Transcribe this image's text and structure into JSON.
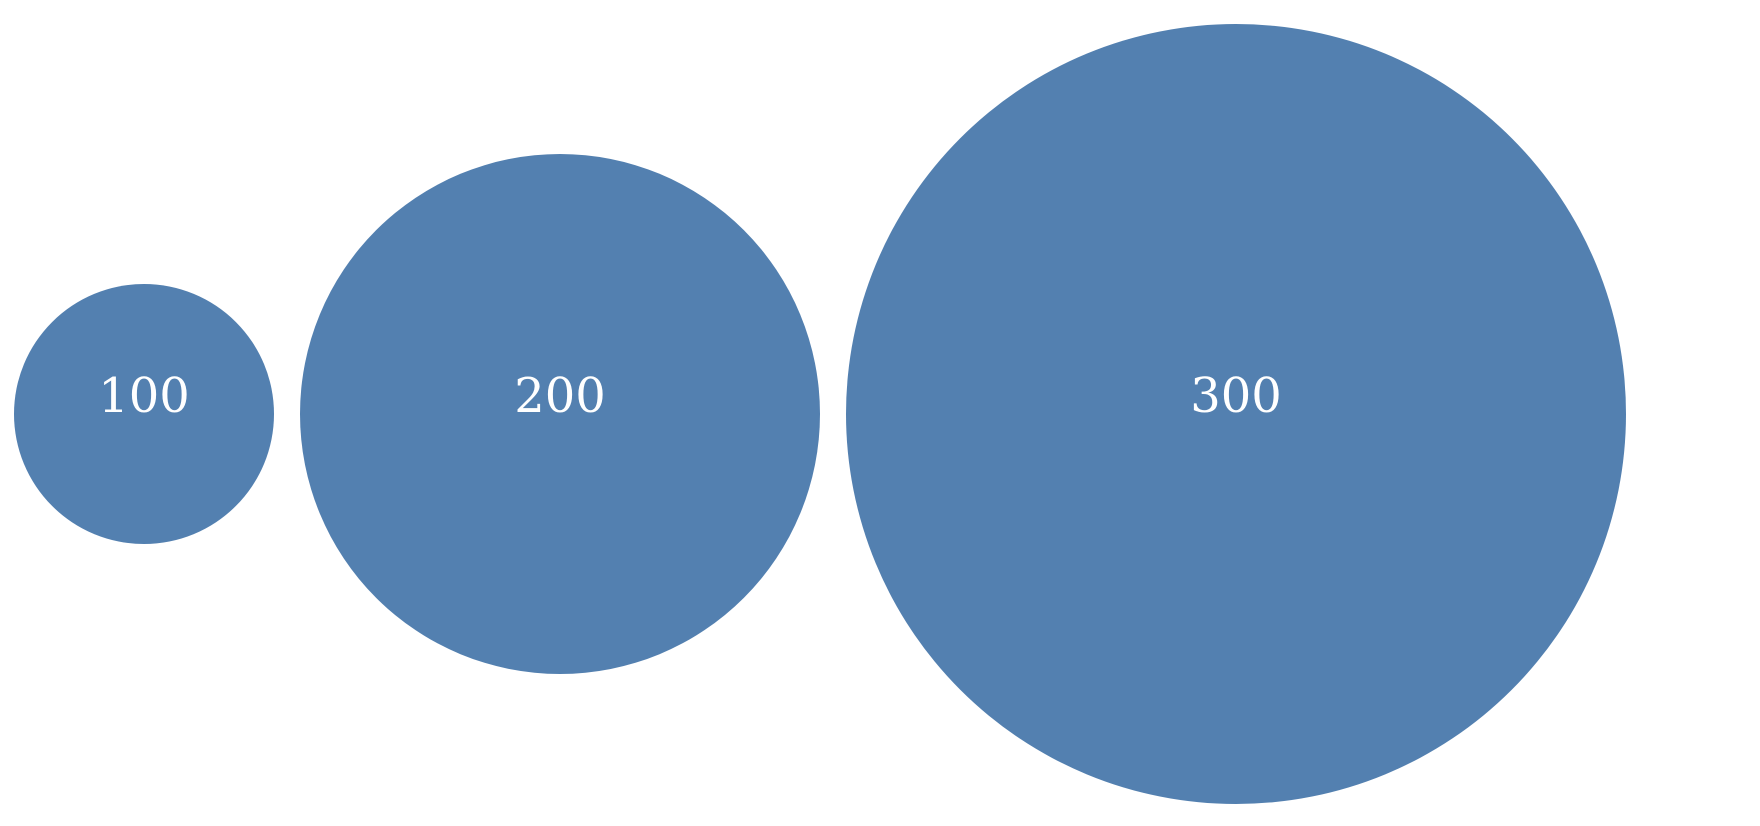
{
  "chart_data": {
    "type": "bubble",
    "title": "",
    "values": [
      100,
      200,
      300
    ],
    "labels": [
      "100",
      "200",
      "300"
    ],
    "radius_proportional_to": "value",
    "colors": {
      "bubble_fill": "#5380b0",
      "label_text": "#ffffff",
      "background": "#ffffff"
    },
    "legend": "none",
    "grid": false
  }
}
